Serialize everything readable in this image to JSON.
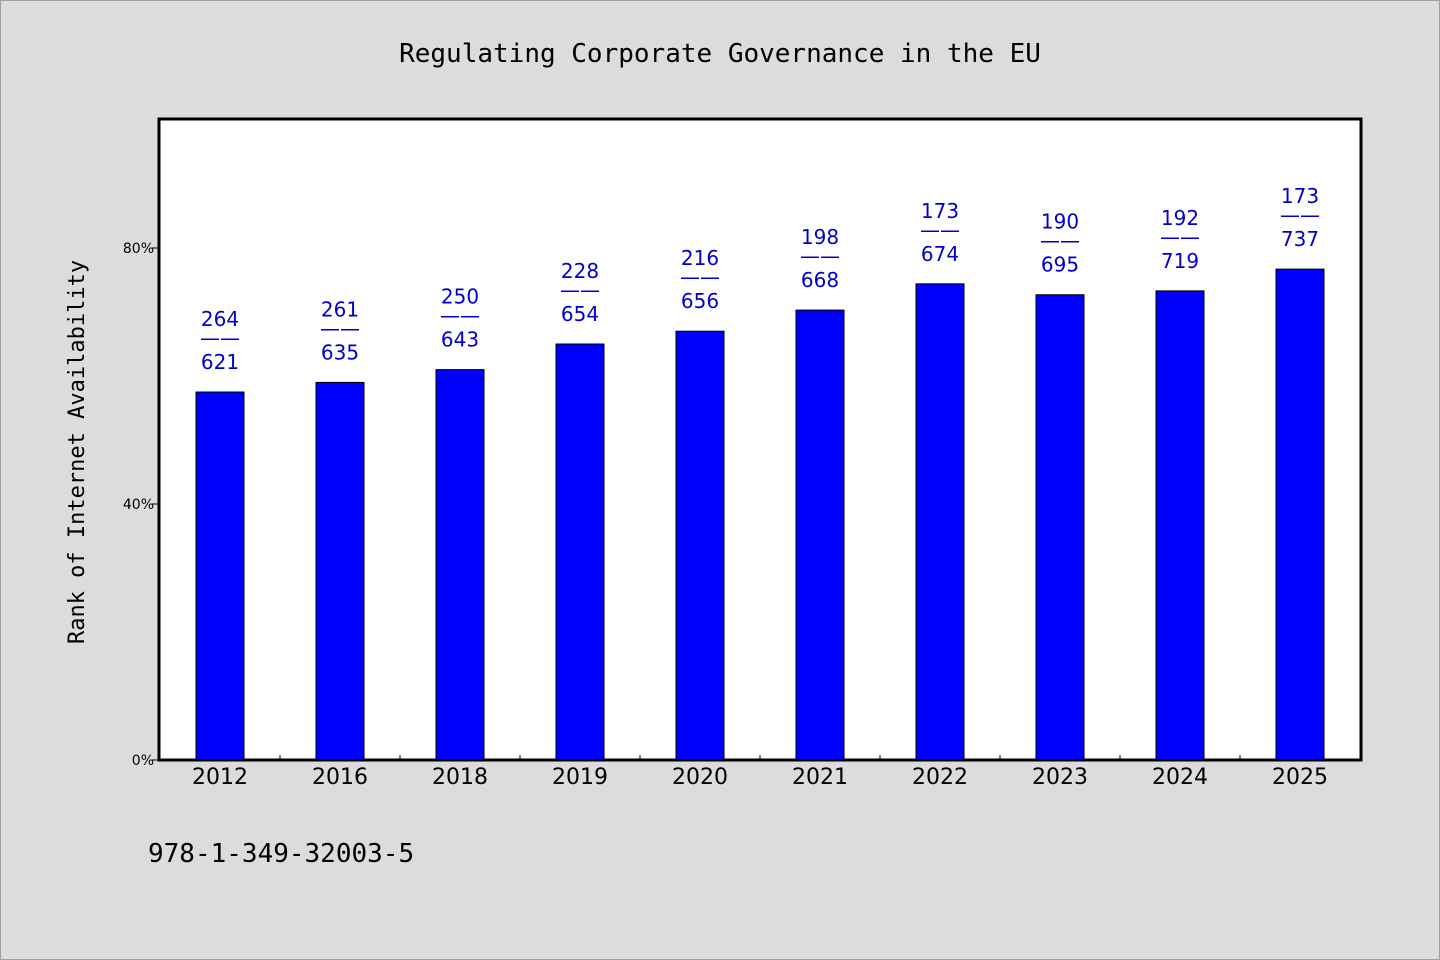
{
  "chart_data": {
    "type": "bar",
    "title": "Regulating Corporate Governance in the EU",
    "ylabel": "Rank of Internet Availability",
    "xlabel": "",
    "categories": [
      "2012",
      "2016",
      "2018",
      "2019",
      "2020",
      "2021",
      "2022",
      "2023",
      "2024",
      "2025"
    ],
    "values": [
      57.5,
      59,
      61,
      65,
      67,
      70.3,
      74.4,
      72.7,
      73.3,
      76.7
    ],
    "value_unit": "%",
    "ylim": [
      0,
      100
    ],
    "yticks": [
      0,
      40,
      80
    ],
    "ytick_labels": [
      "0%",
      "40%",
      "80%"
    ],
    "bar_labels": [
      {
        "top": "264",
        "sep": "——",
        "bottom": "621"
      },
      {
        "top": "261",
        "sep": "——",
        "bottom": "635"
      },
      {
        "top": "250",
        "sep": "——",
        "bottom": "643"
      },
      {
        "top": "228",
        "sep": "——",
        "bottom": "654"
      },
      {
        "top": "216",
        "sep": "——",
        "bottom": "656"
      },
      {
        "top": "198",
        "sep": "——",
        "bottom": "668"
      },
      {
        "top": "173",
        "sep": "——",
        "bottom": "674"
      },
      {
        "top": "190",
        "sep": "——",
        "bottom": "695"
      },
      {
        "top": "192",
        "sep": "——",
        "bottom": "719"
      },
      {
        "top": "173",
        "sep": "——",
        "bottom": "737"
      }
    ],
    "bar_color": "#0000ff",
    "label_color": "#0000cc",
    "grid": false,
    "legend": "none"
  },
  "footer": {
    "code": "978-1-349-32003-5"
  }
}
